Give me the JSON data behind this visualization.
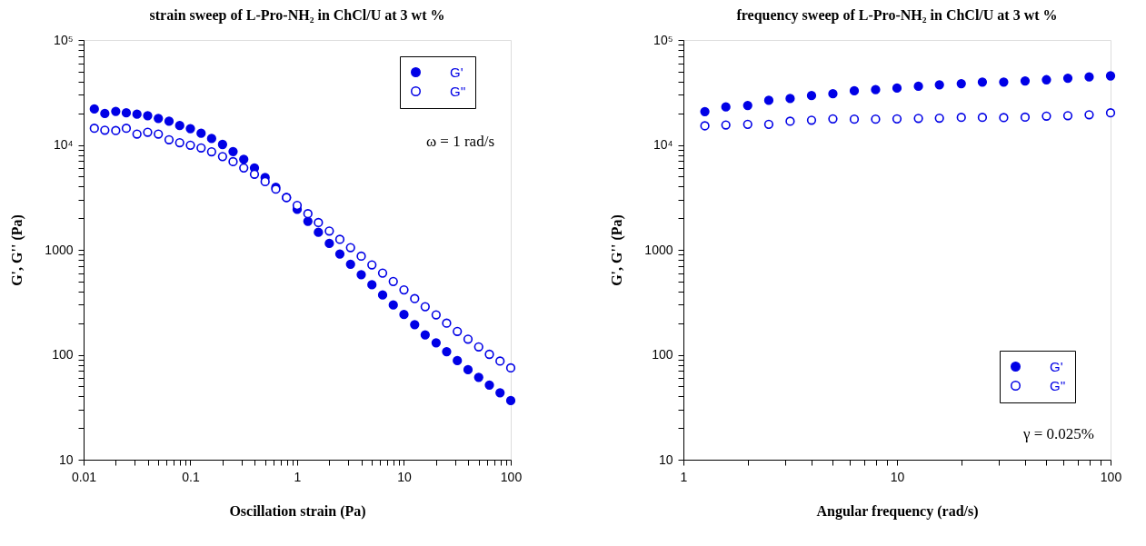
{
  "chart_data": [
    {
      "type": "scatter",
      "title": "strain sweep of L-Pro-NH₂ in ChCl/U  at 3 wt %",
      "xlabel": "Oscillation strain (Pa)",
      "ylabel": "G', G'' (Pa)",
      "log": "xy",
      "grid": false,
      "legend": "top right",
      "marker": "circle",
      "annotations": [
        "ω = 1 rad/s"
      ],
      "xlim": [
        0.01,
        100
      ],
      "ylim": [
        10,
        100000
      ],
      "xticks": [
        0.01,
        {
          "value": 0.02,
          "label": null
        },
        {
          "value": 0.03,
          "label": null
        },
        {
          "value": 0.04,
          "label": null
        },
        {
          "value": 0.05,
          "label": null
        },
        {
          "value": 0.06,
          "label": null
        },
        {
          "value": 0.07,
          "label": null
        },
        {
          "value": 0.08,
          "label": null
        },
        {
          "value": 0.09,
          "label": null
        },
        0.1,
        {
          "value": 0.2,
          "label": null
        },
        {
          "value": 0.3,
          "label": null
        },
        {
          "value": 0.4,
          "label": null
        },
        {
          "value": 0.5,
          "label": null
        },
        {
          "value": 0.6,
          "label": null
        },
        {
          "value": 0.7,
          "label": null
        },
        {
          "value": 0.8,
          "label": null
        },
        {
          "value": 0.9,
          "label": null
        },
        1,
        {
          "value": 2,
          "label": null
        },
        {
          "value": 3,
          "label": null
        },
        {
          "value": 4,
          "label": null
        },
        {
          "value": 5,
          "label": null
        },
        {
          "value": 6,
          "label": null
        },
        {
          "value": 7,
          "label": null
        },
        {
          "value": 8,
          "label": null
        },
        {
          "value": 9,
          "label": null
        },
        10,
        {
          "value": 20,
          "label": null
        },
        {
          "value": 30,
          "label": null
        },
        {
          "value": 40,
          "label": null
        },
        {
          "value": 50,
          "label": null
        },
        {
          "value": 60,
          "label": null
        },
        {
          "value": 70,
          "label": null
        },
        {
          "value": 80,
          "label": null
        },
        {
          "value": 90,
          "label": null
        },
        100
      ],
      "yticks": [
        10,
        {
          "value": 20,
          "label": null
        },
        {
          "value": 30,
          "label": null
        },
        {
          "value": 40,
          "label": null
        },
        {
          "value": 50,
          "label": null
        },
        {
          "value": 60,
          "label": null
        },
        {
          "value": 70,
          "label": null
        },
        {
          "value": 80,
          "label": null
        },
        {
          "value": 90,
          "label": null
        },
        100,
        {
          "value": 200,
          "label": null
        },
        {
          "value": 300,
          "label": null
        },
        {
          "value": 400,
          "label": null
        },
        {
          "value": 500,
          "label": null
        },
        {
          "value": 600,
          "label": null
        },
        {
          "value": 700,
          "label": null
        },
        {
          "value": 800,
          "label": null
        },
        {
          "value": 900,
          "label": null
        },
        1000,
        {
          "value": 2000,
          "label": null
        },
        {
          "value": 3000,
          "label": null
        },
        {
          "value": 4000,
          "label": null
        },
        {
          "value": 5000,
          "label": null
        },
        {
          "value": 6000,
          "label": null
        },
        {
          "value": 7000,
          "label": null
        },
        {
          "value": 8000,
          "label": null
        },
        {
          "value": 9000,
          "label": null
        },
        {
          "value": 10000,
          "label": "10⁴"
        },
        {
          "value": 20000,
          "label": null
        },
        {
          "value": 30000,
          "label": null
        },
        {
          "value": 40000,
          "label": null
        },
        {
          "value": 50000,
          "label": null
        },
        {
          "value": 60000,
          "label": null
        },
        {
          "value": 70000,
          "label": null
        },
        {
          "value": 80000,
          "label": null
        },
        {
          "value": 90000,
          "label": null
        },
        {
          "value": 100000,
          "label": "10⁵"
        }
      ],
      "x": [
        0.0126,
        0.0158,
        0.02,
        0.0251,
        0.0316,
        0.0398,
        0.0501,
        0.0631,
        0.0794,
        0.1,
        0.126,
        0.158,
        0.2,
        0.251,
        0.316,
        0.398,
        0.501,
        0.631,
        0.794,
        1,
        1.26,
        1.58,
        2,
        2.51,
        3.16,
        3.98,
        5.01,
        6.31,
        7.94,
        10,
        12.6,
        15.8,
        20,
        25.1,
        31.6,
        39.8,
        50.1,
        63.1,
        79.4,
        100
      ],
      "series": [
        {
          "name": "G'",
          "color": "#0000e6",
          "values": [
            22000,
            19900,
            20900,
            20200,
            19600,
            19000,
            17900,
            16800,
            15300,
            14300,
            12900,
            11500,
            10100,
            8650,
            7300,
            6030,
            4890,
            3940,
            3150,
            2430,
            1870,
            1470,
            1150,
            912,
            730,
            580,
            465,
            371,
            298,
            242,
            194,
            155,
            130,
            107,
            88,
            72,
            61,
            51.5,
            43.4,
            36.6
          ]
        },
        {
          "name": "G''",
          "color": "#0000e6",
          "values": [
            14400,
            13800,
            13700,
            14400,
            12700,
            13200,
            12700,
            11200,
            10500,
            9930,
            9370,
            8600,
            7740,
            6920,
            6030,
            5250,
            4470,
            3790,
            3150,
            2650,
            2210,
            1820,
            1510,
            1260,
            1050,
            871,
            719,
            600,
            499,
            415,
            343,
            287,
            240,
            200,
            167,
            141,
            119,
            101,
            87,
            75
          ]
        }
      ]
    },
    {
      "type": "scatter",
      "title": "frequency sweep of L-Pro-NH₂ in ChCl/U  at 3 wt %",
      "xlabel": "Angular frequency (rad/s)",
      "ylabel": "G', G'' (Pa)",
      "log": "xy",
      "grid": false,
      "legend": "bottom right",
      "marker": "circle",
      "annotations": [
        "γ = 0.025%"
      ],
      "xlim": [
        1,
        100
      ],
      "ylim": [
        10,
        100000
      ],
      "xticks": [
        1,
        {
          "value": 2,
          "label": null
        },
        {
          "value": 3,
          "label": null
        },
        {
          "value": 4,
          "label": null
        },
        {
          "value": 5,
          "label": null
        },
        {
          "value": 6,
          "label": null
        },
        {
          "value": 7,
          "label": null
        },
        {
          "value": 8,
          "label": null
        },
        {
          "value": 9,
          "label": null
        },
        10,
        {
          "value": 20,
          "label": null
        },
        {
          "value": 30,
          "label": null
        },
        {
          "value": 40,
          "label": null
        },
        {
          "value": 50,
          "label": null
        },
        {
          "value": 60,
          "label": null
        },
        {
          "value": 70,
          "label": null
        },
        {
          "value": 80,
          "label": null
        },
        {
          "value": 90,
          "label": null
        },
        100
      ],
      "yticks": [
        10,
        {
          "value": 20,
          "label": null
        },
        {
          "value": 30,
          "label": null
        },
        {
          "value": 40,
          "label": null
        },
        {
          "value": 50,
          "label": null
        },
        {
          "value": 60,
          "label": null
        },
        {
          "value": 70,
          "label": null
        },
        {
          "value": 80,
          "label": null
        },
        {
          "value": 90,
          "label": null
        },
        100,
        {
          "value": 200,
          "label": null
        },
        {
          "value": 300,
          "label": null
        },
        {
          "value": 400,
          "label": null
        },
        {
          "value": 500,
          "label": null
        },
        {
          "value": 600,
          "label": null
        },
        {
          "value": 700,
          "label": null
        },
        {
          "value": 800,
          "label": null
        },
        {
          "value": 900,
          "label": null
        },
        1000,
        {
          "value": 2000,
          "label": null
        },
        {
          "value": 3000,
          "label": null
        },
        {
          "value": 4000,
          "label": null
        },
        {
          "value": 5000,
          "label": null
        },
        {
          "value": 6000,
          "label": null
        },
        {
          "value": 7000,
          "label": null
        },
        {
          "value": 8000,
          "label": null
        },
        {
          "value": 9000,
          "label": null
        },
        {
          "value": 10000,
          "label": "10⁴"
        },
        {
          "value": 20000,
          "label": null
        },
        {
          "value": 30000,
          "label": null
        },
        {
          "value": 40000,
          "label": null
        },
        {
          "value": 50000,
          "label": null
        },
        {
          "value": 60000,
          "label": null
        },
        {
          "value": 70000,
          "label": null
        },
        {
          "value": 80000,
          "label": null
        },
        {
          "value": 90000,
          "label": null
        },
        {
          "value": 100000,
          "label": "10⁵"
        }
      ],
      "x": [
        1.26,
        1.58,
        2,
        2.51,
        3.16,
        3.98,
        5.01,
        6.31,
        7.94,
        10,
        12.6,
        15.8,
        20,
        25.1,
        31.6,
        39.8,
        50.1,
        63.1,
        79.4,
        100
      ],
      "series": [
        {
          "name": "G'",
          "color": "#0000e6",
          "values": [
            20800,
            23000,
            23800,
            26600,
            27700,
            29500,
            30700,
            32800,
            33600,
            34800,
            36200,
            37400,
            38400,
            39700,
            39700,
            40700,
            41800,
            43200,
            44400,
            45500
          ]
        },
        {
          "name": "G''",
          "color": "#0000e6",
          "values": [
            15200,
            15500,
            15700,
            15700,
            16800,
            17200,
            17700,
            17600,
            17600,
            17700,
            17900,
            18000,
            18300,
            18300,
            18200,
            18400,
            18800,
            19000,
            19400,
            20200
          ]
        }
      ]
    }
  ]
}
